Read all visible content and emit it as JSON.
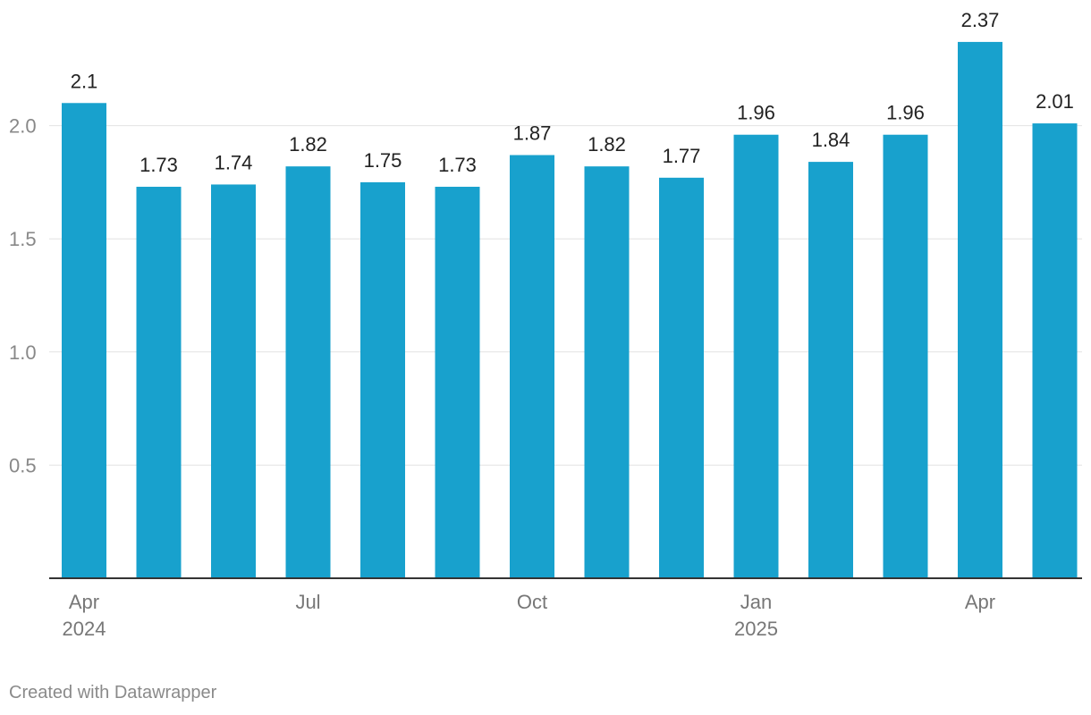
{
  "chart_data": {
    "type": "bar",
    "categories": [
      "Apr 2024",
      "May 2024",
      "Jun 2024",
      "Jul 2024",
      "Aug 2024",
      "Sep 2024",
      "Oct 2024",
      "Nov 2024",
      "Dec 2024",
      "Jan 2025",
      "Feb 2025",
      "Mar 2025",
      "Apr 2025",
      "May 2025"
    ],
    "values": [
      2.1,
      1.73,
      1.74,
      1.82,
      1.75,
      1.73,
      1.87,
      1.82,
      1.77,
      1.96,
      1.84,
      1.96,
      2.37,
      2.01
    ],
    "value_labels": [
      "2.1",
      "1.73",
      "1.74",
      "1.82",
      "1.75",
      "1.73",
      "1.87",
      "1.82",
      "1.77",
      "1.96",
      "1.84",
      "1.96",
      "2.37",
      "2.01"
    ],
    "x_tick_labels": [
      {
        "index": 0,
        "month": "Apr",
        "year": "2024"
      },
      {
        "index": 3,
        "month": "Jul",
        "year": ""
      },
      {
        "index": 6,
        "month": "Oct",
        "year": ""
      },
      {
        "index": 9,
        "month": "Jan",
        "year": "2025"
      },
      {
        "index": 12,
        "month": "Apr",
        "year": ""
      }
    ],
    "y_ticks": [
      0.5,
      1.0,
      1.5,
      2.0
    ],
    "y_tick_labels": [
      "0.5",
      "1.0",
      "1.5",
      "2.0"
    ],
    "ylim": [
      0,
      2.5
    ],
    "grid": true,
    "bar_color": "#18a1cd",
    "title": "",
    "xlabel": "",
    "ylabel": ""
  },
  "footer": {
    "credit": "Created with Datawrapper"
  }
}
